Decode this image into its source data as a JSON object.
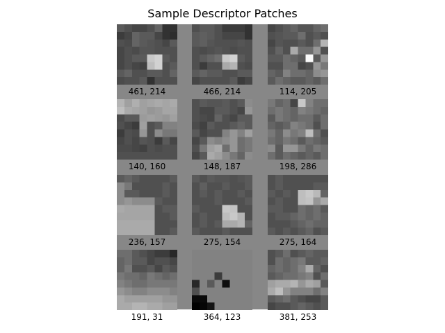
{
  "title": "Sample Descriptor Patches",
  "grid_size": 8,
  "patches": [
    {
      "label": "461, 214",
      "pixels": [
        [
          90,
          80,
          70,
          70,
          80,
          100,
          50,
          50
        ],
        [
          60,
          70,
          100,
          90,
          90,
          70,
          50,
          45
        ],
        [
          80,
          75,
          100,
          90,
          85,
          80,
          70,
          90
        ],
        [
          70,
          80,
          75,
          85,
          85,
          80,
          80,
          80
        ],
        [
          70,
          80,
          90,
          90,
          200,
          210,
          90,
          80
        ],
        [
          70,
          80,
          70,
          65,
          190,
          210,
          80,
          90
        ],
        [
          90,
          100,
          80,
          80,
          90,
          90,
          80,
          100
        ],
        [
          75,
          80,
          80,
          90,
          50,
          80,
          80,
          80
        ]
      ]
    },
    {
      "label": "466, 214",
      "pixels": [
        [
          80,
          90,
          90,
          80,
          60,
          60,
          60,
          50
        ],
        [
          90,
          95,
          90,
          80,
          70,
          70,
          70,
          50
        ],
        [
          90,
          95,
          85,
          80,
          80,
          80,
          85,
          80
        ],
        [
          80,
          75,
          80,
          85,
          80,
          75,
          80,
          80
        ],
        [
          80,
          90,
          100,
          110,
          200,
          210,
          90,
          80
        ],
        [
          80,
          60,
          80,
          80,
          170,
          180,
          80,
          75
        ],
        [
          90,
          100,
          90,
          90,
          80,
          80,
          90,
          90
        ],
        [
          70,
          80,
          80,
          80,
          80,
          90,
          60,
          70
        ]
      ]
    },
    {
      "label": "114, 205",
      "pixels": [
        [
          70,
          80,
          90,
          100,
          85,
          85,
          100,
          110
        ],
        [
          80,
          85,
          90,
          90,
          110,
          80,
          90,
          80
        ],
        [
          70,
          85,
          80,
          80,
          90,
          80,
          110,
          180
        ],
        [
          80,
          100,
          80,
          170,
          110,
          110,
          150,
          80
        ],
        [
          90,
          90,
          110,
          100,
          90,
          250,
          90,
          150
        ],
        [
          80,
          80,
          110,
          110,
          70,
          80,
          150,
          120
        ],
        [
          100,
          90,
          130,
          110,
          110,
          100,
          140,
          150
        ],
        [
          90,
          110,
          100,
          90,
          90,
          100,
          90,
          110
        ]
      ]
    },
    {
      "label": "140, 160",
      "pixels": [
        [
          180,
          160,
          175,
          160,
          165,
          170,
          165,
          170
        ],
        [
          190,
          170,
          165,
          160,
          150,
          155,
          165,
          165
        ],
        [
          75,
          90,
          90,
          155,
          160,
          155,
          150,
          160
        ],
        [
          80,
          70,
          60,
          160,
          80,
          90,
          130,
          130
        ],
        [
          60,
          80,
          75,
          150,
          80,
          140,
          120,
          120
        ],
        [
          70,
          80,
          70,
          85,
          80,
          60,
          90,
          70
        ],
        [
          75,
          75,
          70,
          65,
          80,
          75,
          80,
          80
        ],
        [
          80,
          80,
          80,
          80,
          80,
          80,
          80,
          80
        ]
      ]
    },
    {
      "label": "148, 187",
      "pixels": [
        [
          80,
          90,
          85,
          85,
          90,
          80,
          90,
          140
        ],
        [
          80,
          70,
          70,
          90,
          90,
          80,
          70,
          150
        ],
        [
          80,
          75,
          70,
          100,
          80,
          70,
          90,
          90
        ],
        [
          75,
          65,
          90,
          80,
          80,
          90,
          100,
          90
        ],
        [
          90,
          70,
          80,
          80,
          130,
          150,
          130,
          160
        ],
        [
          70,
          90,
          140,
          130,
          140,
          150,
          110,
          120
        ],
        [
          80,
          120,
          160,
          170,
          110,
          150,
          110,
          120
        ],
        [
          70,
          90,
          170,
          160,
          140,
          120,
          100,
          140
        ]
      ]
    },
    {
      "label": "198, 286",
      "pixels": [
        [
          120,
          100,
          110,
          70,
          200,
          130,
          110,
          110
        ],
        [
          110,
          120,
          110,
          100,
          130,
          120,
          110,
          100
        ],
        [
          90,
          120,
          110,
          100,
          110,
          110,
          90,
          110
        ],
        [
          100,
          90,
          100,
          130,
          120,
          110,
          80,
          110
        ],
        [
          120,
          100,
          140,
          120,
          130,
          190,
          110,
          80
        ],
        [
          110,
          100,
          120,
          110,
          90,
          110,
          100,
          90
        ],
        [
          140,
          90,
          150,
          150,
          120,
          100,
          120,
          110
        ],
        [
          110,
          90,
          110,
          100,
          90,
          100,
          90,
          110
        ]
      ]
    },
    {
      "label": "236, 157",
      "pixels": [
        [
          90,
          100,
          90,
          80,
          80,
          80,
          80,
          90
        ],
        [
          140,
          120,
          80,
          80,
          80,
          80,
          90,
          80
        ],
        [
          140,
          90,
          90,
          80,
          80,
          80,
          90,
          80
        ],
        [
          140,
          150,
          140,
          140,
          140,
          90,
          80,
          80
        ],
        [
          170,
          165,
          165,
          165,
          165,
          80,
          90,
          90
        ],
        [
          165,
          165,
          165,
          165,
          165,
          80,
          80,
          90
        ],
        [
          170,
          170,
          170,
          170,
          170,
          80,
          80,
          80
        ],
        [
          170,
          170,
          170,
          170,
          170,
          80,
          80,
          90
        ]
      ]
    },
    {
      "label": "275, 154",
      "pixels": [
        [
          90,
          80,
          90,
          85,
          85,
          80,
          85,
          90
        ],
        [
          80,
          95,
          80,
          80,
          90,
          80,
          80,
          90
        ],
        [
          80,
          90,
          80,
          90,
          80,
          80,
          90,
          80
        ],
        [
          80,
          80,
          80,
          90,
          80,
          80,
          80,
          90
        ],
        [
          90,
          80,
          80,
          80,
          200,
          195,
          80,
          80
        ],
        [
          80,
          90,
          80,
          80,
          190,
          200,
          180,
          80
        ],
        [
          80,
          90,
          80,
          90,
          170,
          170,
          180,
          100
        ],
        [
          90,
          80,
          80,
          80,
          90,
          80,
          80,
          80
        ]
      ]
    },
    {
      "label": "275, 164",
      "pixels": [
        [
          80,
          90,
          80,
          80,
          80,
          80,
          80,
          80
        ],
        [
          80,
          90,
          80,
          80,
          80,
          80,
          90,
          90
        ],
        [
          90,
          80,
          90,
          80,
          190,
          200,
          185,
          100
        ],
        [
          80,
          90,
          80,
          80,
          190,
          195,
          150,
          170
        ],
        [
          90,
          90,
          80,
          80,
          110,
          100,
          110,
          90
        ],
        [
          80,
          90,
          90,
          100,
          110,
          100,
          110,
          100
        ],
        [
          80,
          80,
          80,
          90,
          100,
          110,
          100,
          100
        ],
        [
          90,
          80,
          90,
          80,
          90,
          100,
          80,
          90
        ]
      ]
    },
    {
      "label": "191, 31",
      "pixels": [
        [
          110,
          110,
          90,
          80,
          70,
          60,
          60,
          40
        ],
        [
          100,
          110,
          90,
          90,
          70,
          80,
          80,
          70
        ],
        [
          100,
          120,
          80,
          80,
          90,
          70,
          90,
          80
        ],
        [
          120,
          110,
          110,
          100,
          120,
          110,
          100,
          110
        ],
        [
          130,
          120,
          110,
          110,
          120,
          120,
          120,
          120
        ],
        [
          150,
          140,
          130,
          130,
          140,
          140,
          140,
          130
        ],
        [
          170,
          160,
          160,
          160,
          160,
          160,
          150,
          150
        ],
        [
          170,
          170,
          180,
          180,
          170,
          170,
          160,
          160
        ]
      ]
    },
    {
      "label": "364, 123",
      "pixels": [
        [
          130,
          130,
          130,
          130,
          130,
          130,
          130,
          130
        ],
        [
          130,
          130,
          130,
          130,
          130,
          130,
          130,
          130
        ],
        [
          130,
          130,
          130,
          130,
          130,
          130,
          130,
          130
        ],
        [
          130,
          130,
          130,
          60,
          130,
          130,
          130,
          130
        ],
        [
          40,
          130,
          90,
          130,
          15,
          130,
          130,
          130
        ],
        [
          80,
          130,
          130,
          130,
          130,
          130,
          130,
          130
        ],
        [
          10,
          10,
          130,
          130,
          130,
          130,
          130,
          130
        ],
        [
          0,
          5,
          20,
          130,
          130,
          130,
          130,
          130
        ]
      ]
    },
    {
      "label": "381, 253",
      "pixels": [
        [
          80,
          90,
          110,
          80,
          90,
          100,
          90,
          90
        ],
        [
          80,
          110,
          100,
          110,
          120,
          90,
          90,
          100
        ],
        [
          100,
          110,
          100,
          110,
          130,
          170,
          100,
          80
        ],
        [
          90,
          100,
          110,
          110,
          120,
          130,
          80,
          110
        ],
        [
          160,
          170,
          170,
          180,
          150,
          170,
          160,
          90
        ],
        [
          170,
          190,
          150,
          130,
          130,
          130,
          110,
          130
        ],
        [
          90,
          100,
          110,
          90,
          80,
          70,
          70,
          90
        ],
        [
          70,
          80,
          80,
          90,
          100,
          90,
          80,
          90
        ]
      ]
    }
  ]
}
